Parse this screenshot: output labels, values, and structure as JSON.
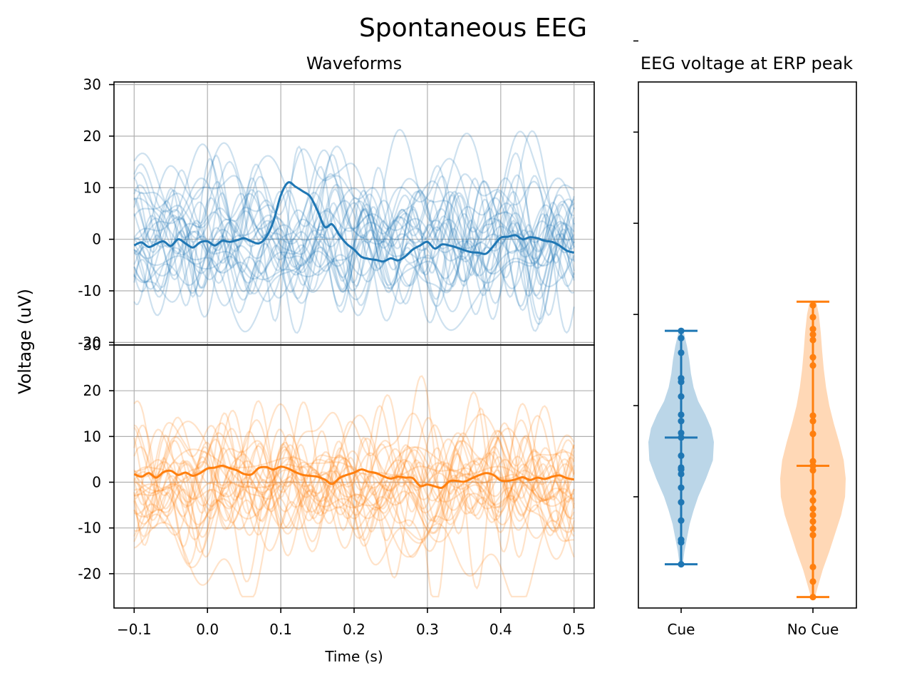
{
  "chart_data": {
    "title": "Spontaneous EEG",
    "ylabel": "Voltage (uV)",
    "colors": {
      "cue": "#1f77b4",
      "no_cue": "#ff7f0e"
    },
    "waveforms": {
      "title": "Waveforms",
      "xlabel": "Time (s)",
      "type": "line",
      "x_range": [
        -0.1,
        0.5
      ],
      "xlim": [
        -0.1275,
        0.5275
      ],
      "x_ticks": [
        -0.1,
        0.0,
        0.1,
        0.2,
        0.3,
        0.4,
        0.5
      ],
      "x_tick_labels": [
        "−0.1",
        "0.0",
        "0.1",
        "0.2",
        "0.3",
        "0.4",
        "0.5"
      ],
      "grid": true,
      "panels": [
        {
          "name": "Cue",
          "ylim": [
            -20.5,
            30.5
          ],
          "y_ticks": [
            30,
            20,
            10,
            0,
            -10,
            -20
          ],
          "y_tick_labels": [
            "30",
            "20",
            "10",
            "0",
            "-10",
            "-20"
          ],
          "n_trials": 30,
          "individual_range": [
            -25,
            23
          ],
          "mean": {
            "x": [
              -0.1,
              -0.09,
              -0.08,
              -0.07,
              -0.06,
              -0.05,
              -0.04,
              -0.03,
              -0.02,
              -0.01,
              0.0,
              0.01,
              0.02,
              0.03,
              0.04,
              0.05,
              0.06,
              0.07,
              0.08,
              0.09,
              0.1,
              0.11,
              0.12,
              0.13,
              0.14,
              0.15,
              0.16,
              0.17,
              0.18,
              0.19,
              0.2,
              0.21,
              0.22,
              0.23,
              0.24,
              0.25,
              0.26,
              0.27,
              0.28,
              0.29,
              0.3,
              0.31,
              0.32,
              0.33,
              0.34,
              0.35,
              0.36,
              0.37,
              0.38,
              0.39,
              0.4,
              0.41,
              0.42,
              0.43,
              0.44,
              0.45,
              0.46,
              0.47,
              0.48,
              0.49,
              0.5
            ],
            "y": [
              -1.2,
              -0.6,
              -1.5,
              -0.9,
              -0.4,
              -1.3,
              0.0,
              -0.8,
              -1.6,
              -0.6,
              -0.4,
              -1.2,
              -0.3,
              -0.5,
              -0.2,
              0.2,
              -0.4,
              -0.8,
              0.4,
              3.5,
              8.5,
              11.0,
              10.2,
              9.3,
              8.3,
              5.6,
              2.4,
              2.9,
              0.8,
              -0.9,
              -2.0,
              -3.4,
              -3.8,
              -4.0,
              -4.3,
              -3.7,
              -4.1,
              -3.3,
              -2.0,
              -1.2,
              -0.5,
              -1.8,
              -1.0,
              -1.2,
              -1.6,
              -2.1,
              -2.5,
              -2.6,
              -2.8,
              -1.3,
              0.3,
              0.5,
              0.8,
              0.0,
              0.4,
              0.2,
              -0.3,
              -0.5,
              -1.2,
              -2.2,
              -2.6
            ]
          }
        },
        {
          "name": "No Cue",
          "ylim": [
            -27.5,
            30
          ],
          "y_ticks": [
            30,
            20,
            10,
            0,
            -10,
            -20
          ],
          "y_tick_labels": [
            "30",
            "20",
            "10",
            "0",
            "-10",
            "-20"
          ],
          "n_trials": 30,
          "individual_range": [
            -25,
            27
          ],
          "mean": {
            "x": [
              -0.1,
              -0.09,
              -0.08,
              -0.07,
              -0.06,
              -0.05,
              -0.04,
              -0.03,
              -0.02,
              -0.01,
              0.0,
              0.01,
              0.02,
              0.03,
              0.04,
              0.05,
              0.06,
              0.07,
              0.08,
              0.09,
              0.1,
              0.11,
              0.12,
              0.13,
              0.14,
              0.15,
              0.16,
              0.17,
              0.18,
              0.19,
              0.2,
              0.21,
              0.22,
              0.23,
              0.24,
              0.25,
              0.26,
              0.27,
              0.28,
              0.29,
              0.3,
              0.31,
              0.32,
              0.33,
              0.34,
              0.35,
              0.36,
              0.37,
              0.38,
              0.39,
              0.4,
              0.41,
              0.42,
              0.43,
              0.44,
              0.45,
              0.46,
              0.47,
              0.48,
              0.49,
              0.5
            ],
            "y": [
              1.8,
              1.2,
              2.0,
              1.0,
              2.2,
              2.5,
              1.6,
              2.1,
              1.4,
              2.0,
              3.0,
              3.2,
              3.6,
              3.1,
              2.6,
              1.8,
              1.7,
              3.1,
              3.3,
              2.8,
              3.4,
              3.0,
              2.2,
              1.6,
              1.4,
              1.2,
              0.6,
              -0.4,
              0.9,
              1.6,
              2.1,
              2.8,
              2.3,
              2.0,
              1.3,
              0.8,
              1.2,
              1.0,
              0.9,
              -0.8,
              -0.5,
              -0.9,
              -1.2,
              0.2,
              0.3,
              0.1,
              0.8,
              1.5,
              2.0,
              1.6,
              0.4,
              0.3,
              0.6,
              1.1,
              0.5,
              1.0,
              0.7,
              1.2,
              1.5,
              0.9,
              0.6
            ]
          }
        }
      ]
    },
    "violin": {
      "title": "EEG voltage at ERP peak",
      "type": "violin",
      "categories": [
        "Cue",
        "No Cue"
      ],
      "y_tick_values": [
        -5,
        5,
        15,
        25,
        35,
        45
      ],
      "ylim": [
        -17.2,
        40.5
      ],
      "series": [
        {
          "name": "Cue",
          "min": -12.4,
          "max": 13.2,
          "mean": 1.5,
          "points": [
            -12.4,
            -10.0,
            -9.7,
            -7.6,
            -5.6,
            -4.0,
            -2.5,
            -2.0,
            -1.8,
            -0.5,
            1.5,
            2.0,
            3.3,
            4.0,
            6.0,
            7.6,
            8.0,
            10.8,
            12.4,
            13.2
          ],
          "profile": [
            [
              -12.4,
              0.05
            ],
            [
              -11.0,
              0.1
            ],
            [
              -9.5,
              0.18
            ],
            [
              -8.0,
              0.26
            ],
            [
              -6.5,
              0.38
            ],
            [
              -5.0,
              0.52
            ],
            [
              -3.0,
              0.76
            ],
            [
              -1.0,
              0.97
            ],
            [
              1.0,
              1.0
            ],
            [
              2.5,
              0.92
            ],
            [
              4.0,
              0.74
            ],
            [
              5.5,
              0.52
            ],
            [
              7.0,
              0.38
            ],
            [
              8.5,
              0.3
            ],
            [
              10.0,
              0.25
            ],
            [
              11.5,
              0.18
            ],
            [
              13.2,
              0.07
            ]
          ]
        },
        {
          "name": "No Cue",
          "min": -16.0,
          "max": 16.4,
          "mean": -1.6,
          "points": [
            -16.0,
            -14.3,
            -12.7,
            -9.2,
            -8.5,
            -7.7,
            -7.0,
            -6.3,
            -5.4,
            -4.5,
            -2.1,
            -1.1,
            -1.6,
            1.9,
            3.3,
            3.9,
            9.4,
            10.3,
            12.2,
            12.8,
            13.4,
            14.7,
            16.0
          ],
          "profile": [
            [
              -16.0,
              0.06
            ],
            [
              -15.0,
              0.14
            ],
            [
              -13.0,
              0.3
            ],
            [
              -11.0,
              0.5
            ],
            [
              -9.0,
              0.68
            ],
            [
              -7.0,
              0.86
            ],
            [
              -5.0,
              0.98
            ],
            [
              -3.0,
              1.0
            ],
            [
              -1.0,
              0.94
            ],
            [
              1.0,
              0.8
            ],
            [
              3.0,
              0.64
            ],
            [
              5.0,
              0.5
            ],
            [
              7.0,
              0.4
            ],
            [
              9.0,
              0.33
            ],
            [
              11.0,
              0.28
            ],
            [
              13.0,
              0.24
            ],
            [
              15.0,
              0.18
            ],
            [
              16.4,
              0.1
            ]
          ]
        }
      ]
    }
  }
}
